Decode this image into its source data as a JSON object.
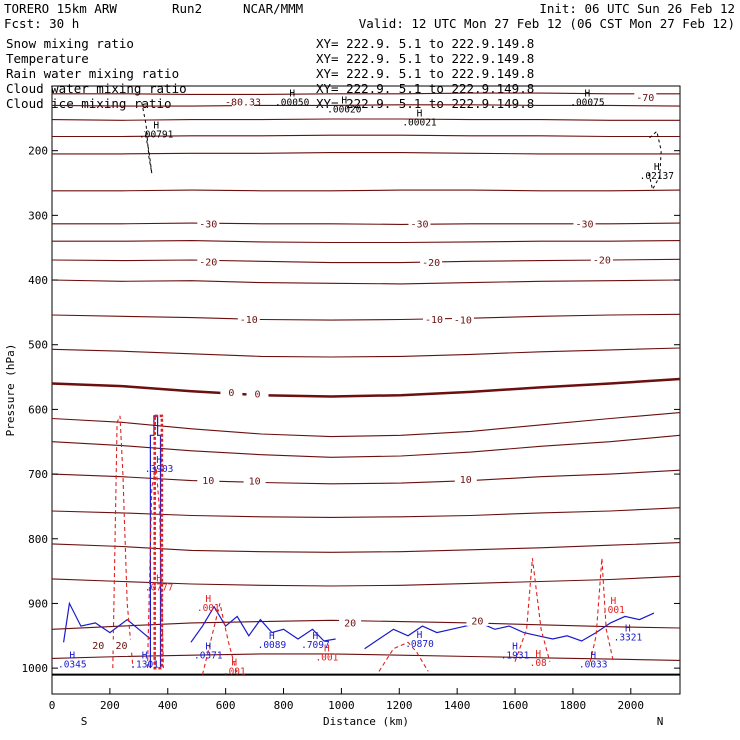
{
  "header": {
    "model": "TORERO  15km ARW",
    "run": "Run2",
    "org": "NCAR/MMM",
    "init": "Init: 06 UTC Sun 26 Feb 12",
    "fcst": "Fcst:    30 h",
    "valid": "Valid: 12 UTC Mon 27 Feb 12 (06 CST Mon 27 Feb 12)"
  },
  "colors": {
    "temperature": "#6b0f0f",
    "rain": "#e02020",
    "cloud_water": "#1a1acc",
    "frame": "#000000"
  },
  "chart_data": {
    "type": "line",
    "title": "Cross section",
    "xlabel": "Distance (km)",
    "ylabel": "Pressure (hPa)",
    "xlim": [
      0,
      2170
    ],
    "ylim": [
      1040,
      100
    ],
    "x_ticks": [
      0,
      200,
      400,
      600,
      800,
      1000,
      1200,
      1400,
      1600,
      1800,
      2000
    ],
    "y_ticks": [
      200,
      300,
      400,
      500,
      600,
      700,
      800,
      900,
      1000
    ],
    "end_labels": {
      "left": "S",
      "right": "N"
    },
    "legend": [
      {
        "name": "Snow mixing ratio",
        "xy": "XY= 222.9.  5.1 to 222.9.149.8",
        "color": "#000000"
      },
      {
        "name": "Temperature",
        "xy": "XY= 222.9.  5.1 to 222.9.149.8",
        "color": "#e02020"
      },
      {
        "name": "Rain water mixing ratio",
        "xy": "XY= 222.9.  5.1 to 222.9.149.8",
        "color": "#e02020"
      },
      {
        "name": "Cloud water mixing ratio",
        "xy": "XY= 222.9.  5.1 to 222.9.149.8",
        "color": "#1a1acc"
      },
      {
        "name": "Cloud ice mixing ratio",
        "xy": "XY= 222.9.  5.1 to 222.9.149.8",
        "color": "#000000"
      }
    ],
    "isotherms": [
      {
        "value": -70,
        "p": [
          112,
          112,
          113,
          113,
          112,
          112,
          111,
          111,
          112,
          112
        ]
      },
      {
        "value": -60,
        "p": [
          130,
          131,
          131,
          130,
          130,
          129,
          129,
          130,
          130,
          131
        ]
      },
      {
        "value": -55,
        "p": [
          152,
          153,
          152,
          152,
          151,
          151,
          152,
          152,
          153,
          153
        ]
      },
      {
        "value": -50,
        "p": [
          178,
          178,
          177,
          177,
          176,
          176,
          177,
          177,
          178,
          178
        ]
      },
      {
        "value": -45,
        "p": [
          205,
          205,
          204,
          204,
          203,
          203,
          204,
          205,
          205,
          205
        ]
      },
      {
        "value": -40,
        "p": [
          262,
          262,
          261,
          262,
          262,
          261,
          261,
          262,
          262,
          261
        ]
      },
      {
        "value": -30,
        "p": [
          313,
          313,
          312,
          313,
          313,
          314,
          313,
          313,
          313,
          312
        ]
      },
      {
        "value": -25,
        "p": [
          340,
          340,
          339,
          341,
          342,
          342,
          341,
          340,
          340,
          339
        ]
      },
      {
        "value": -20,
        "p": [
          369,
          370,
          369,
          371,
          373,
          373,
          371,
          370,
          369,
          368
        ]
      },
      {
        "value": -15,
        "p": [
          400,
          402,
          401,
          404,
          405,
          406,
          404,
          402,
          401,
          400
        ]
      },
      {
        "value": -10,
        "p": [
          454,
          456,
          458,
          461,
          462,
          461,
          459,
          456,
          454,
          453
        ]
      },
      {
        "value": -5,
        "p": [
          507,
          510,
          514,
          518,
          519,
          518,
          515,
          511,
          508,
          505
        ]
      },
      {
        "value": 0,
        "p": [
          560,
          564,
          572,
          578,
          580,
          578,
          573,
          566,
          560,
          553
        ]
      },
      {
        "value": 5,
        "p": [
          614,
          620,
          630,
          638,
          642,
          640,
          634,
          624,
          614,
          605
        ]
      },
      {
        "value": 6,
        "p": [
          650,
          656,
          664,
          670,
          674,
          672,
          666,
          657,
          650,
          640
        ]
      },
      {
        "value": 10,
        "p": [
          700,
          704,
          710,
          713,
          715,
          714,
          710,
          704,
          700,
          694
        ]
      },
      {
        "value": 15,
        "p": [
          757,
          760,
          764,
          766,
          767,
          766,
          764,
          760,
          757,
          752
        ]
      },
      {
        "value": 17,
        "p": [
          808,
          812,
          818,
          820,
          821,
          820,
          817,
          814,
          810,
          806
        ]
      },
      {
        "value": 18,
        "p": [
          862,
          866,
          870,
          872,
          873,
          872,
          869,
          866,
          863,
          858
        ]
      },
      {
        "value": 20,
        "p": [
          940,
          935,
          930,
          928,
          926,
          928,
          930,
          933,
          936,
          938
        ]
      },
      {
        "value": 22,
        "p": [
          985,
          982,
          980,
          978,
          978,
          980,
          982,
          984,
          986,
          988
        ]
      }
    ],
    "temperature_labels": [
      {
        "text": "-80.33",
        "x": 660,
        "p": 125
      },
      {
        "text": "-70",
        "x": 2050,
        "p": 118
      },
      {
        "text": "-30",
        "x": 540,
        "p": 313
      },
      {
        "text": "-30",
        "x": 1270,
        "p": 313
      },
      {
        "text": "-30",
        "x": 1840,
        "p": 313
      },
      {
        "text": "-20",
        "x": 540,
        "p": 372
      },
      {
        "text": "-20",
        "x": 1310,
        "p": 373
      },
      {
        "text": "-20",
        "x": 1900,
        "p": 369
      },
      {
        "text": "-10",
        "x": 680,
        "p": 461
      },
      {
        "text": "-10",
        "x": 1320,
        "p": 461
      },
      {
        "text": "-10",
        "x": 1420,
        "p": 462
      },
      {
        "text": "0",
        "x": 620,
        "p": 574
      },
      {
        "text": "0",
        "x": 710,
        "p": 576
      },
      {
        "text": "10",
        "x": 540,
        "p": 710
      },
      {
        "text": "10",
        "x": 700,
        "p": 711
      },
      {
        "text": "10",
        "x": 1430,
        "p": 708
      },
      {
        "text": "20",
        "x": 1030,
        "p": 930
      },
      {
        "text": "20",
        "x": 1470,
        "p": 927
      },
      {
        "text": "20",
        "x": 160,
        "p": 965
      },
      {
        "text": "20",
        "x": 240,
        "p": 965
      }
    ],
    "maxima_labels": [
      {
        "text": ".00050",
        "x": 830,
        "p": 130,
        "color": "#000000"
      },
      {
        "text": ".00020",
        "x": 1010,
        "p": 141,
        "color": "#000000"
      },
      {
        "text": ".00021",
        "x": 1270,
        "p": 161,
        "color": "#000000"
      },
      {
        "text": ".00075",
        "x": 1850,
        "p": 130,
        "color": "#000000"
      },
      {
        "text": ".00791",
        "x": 360,
        "p": 180,
        "color": "#000000"
      },
      {
        "text": ".02137",
        "x": 2090,
        "p": 244,
        "color": "#000000"
      },
      {
        "text": ".3903",
        "x": 370,
        "p": 697,
        "color": "#1a1acc"
      },
      {
        "text": ".0345",
        "x": 70,
        "p": 999,
        "color": "#1a1acc"
      },
      {
        "text": ".1301",
        "x": 320,
        "p": 999,
        "color": "#1a1acc"
      },
      {
        "text": ".0371",
        "x": 540,
        "p": 985,
        "color": "#1a1acc"
      },
      {
        "text": ".0089",
        "x": 760,
        "p": 969,
        "color": "#1a1acc"
      },
      {
        "text": ".7097",
        "x": 910,
        "p": 969,
        "color": "#1a1acc"
      },
      {
        "text": ".0870",
        "x": 1270,
        "p": 967,
        "color": "#1a1acc"
      },
      {
        "text": ".1931",
        "x": 1600,
        "p": 985,
        "color": "#1a1acc"
      },
      {
        "text": ".0033",
        "x": 1870,
        "p": 999,
        "color": "#1a1acc"
      },
      {
        "text": ".3321",
        "x": 1990,
        "p": 957,
        "color": "#1a1acc"
      },
      {
        "text": ".001",
        "x": 540,
        "p": 912,
        "color": "#e02020"
      },
      {
        "text": ".001",
        "x": 630,
        "p": 1010,
        "color": "#e02020"
      },
      {
        "text": ".001",
        "x": 950,
        "p": 988,
        "color": "#e02020"
      },
      {
        "text": ".001",
        "x": 1940,
        "p": 915,
        "color": "#e02020"
      },
      {
        "text": ".08",
        "x": 1680,
        "p": 997,
        "color": "#e02020"
      },
      {
        "text": ".0777",
        "x": 370,
        "p": 880,
        "color": "#e02020"
      }
    ],
    "cloud_water_contours": [
      {
        "x": [
          340,
          340,
          352,
          352,
          365,
          365,
          375,
          375
        ],
        "p": [
          1000,
          640,
          640,
          610,
          610,
          640,
          640,
          1000
        ]
      },
      {
        "x": [
          40,
          60,
          100,
          150,
          200,
          260,
          300,
          340
        ],
        "p": [
          960,
          900,
          935,
          930,
          945,
          925,
          940,
          955
        ]
      },
      {
        "x": [
          480,
          520,
          560,
          600,
          640,
          680,
          720,
          760,
          800,
          850,
          900,
          940,
          980
        ],
        "p": [
          960,
          935,
          905,
          935,
          920,
          950,
          925,
          945,
          940,
          955,
          940,
          958,
          955
        ]
      },
      {
        "x": [
          1080,
          1130,
          1180,
          1230,
          1280,
          1330,
          1380,
          1430,
          1480,
          1530,
          1580,
          1630,
          1680,
          1730,
          1780,
          1830,
          1880,
          1930,
          1980,
          2030,
          2080
        ],
        "p": [
          970,
          955,
          940,
          950,
          935,
          945,
          940,
          935,
          930,
          940,
          935,
          945,
          950,
          955,
          950,
          958,
          945,
          930,
          920,
          925,
          915
        ]
      }
    ],
    "rain_contours": [
      {
        "x": [
          210,
          225,
          235,
          245,
          260,
          280
        ],
        "p": [
          1000,
          620,
          610,
          700,
          900,
          1000
        ]
      },
      {
        "x": [
          330,
          345,
          360,
          372,
          385
        ],
        "p": [
          1000,
          720,
          690,
          760,
          1000
        ]
      },
      {
        "x": [
          1600,
          1640,
          1660,
          1690,
          1720
        ],
        "p": [
          990,
          940,
          830,
          940,
          990
        ]
      },
      {
        "x": [
          1860,
          1880,
          1900,
          1915,
          1940
        ],
        "p": [
          990,
          950,
          830,
          940,
          990
        ]
      },
      {
        "x": [
          1130,
          1180,
          1230,
          1260,
          1300
        ],
        "p": [
          1005,
          970,
          960,
          975,
          1005
        ]
      },
      {
        "x": [
          520,
          550,
          580,
          610,
          640
        ],
        "p": [
          1010,
          955,
          900,
          960,
          1010
        ]
      }
    ],
    "ice_contours": [
      {
        "x": [
          310,
          325,
          335,
          345,
          335,
          320
        ],
        "p": [
          125,
          160,
          210,
          235,
          200,
          170
        ]
      },
      {
        "x": [
          2065,
          2090,
          2105,
          2100,
          2075,
          2060
        ],
        "p": [
          180,
          170,
          200,
          240,
          260,
          230
        ]
      }
    ],
    "heavy_rain_column": {
      "x": [
        355,
        380
      ],
      "p": [
        610,
        1000
      ]
    },
    "surface_line": {
      "x": [
        0,
        2170
      ],
      "p": [
        1010,
        1010
      ]
    }
  }
}
